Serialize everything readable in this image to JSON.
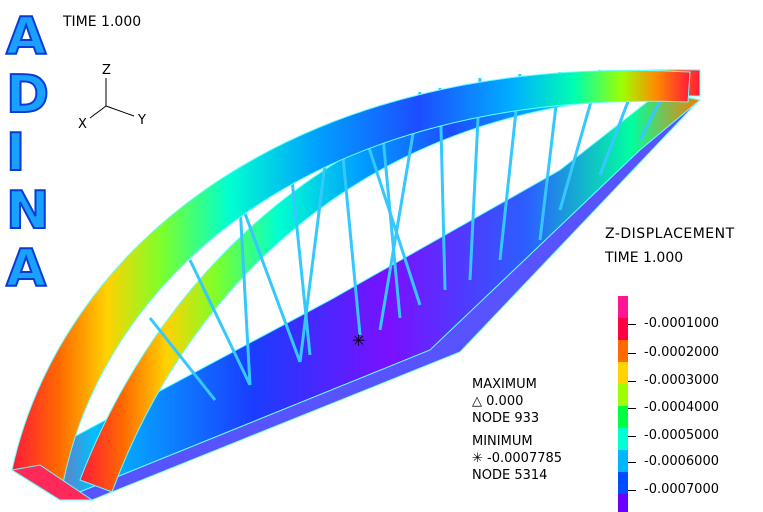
{
  "logo": {
    "letters": [
      "A",
      "D",
      "I",
      "N",
      "A"
    ]
  },
  "header": {
    "time_label": "TIME 1.000"
  },
  "triad": {
    "z": "Z",
    "x": "X",
    "y": "Y"
  },
  "legend": {
    "title": "Z-DISPLACEMENT",
    "time_label": "TIME 1.000",
    "ticks": [
      "-0.0001000",
      "-0.0002000",
      "-0.0003000",
      "-0.0004000",
      "-0.0005000",
      "-0.0006000",
      "-0.0007000"
    ],
    "colors": [
      "#ff1493",
      "#ff0040",
      "#ff6a00",
      "#ffd200",
      "#9dff00",
      "#00ff40",
      "#00ffd5",
      "#00b7ff",
      "#004dff",
      "#6a00ff"
    ]
  },
  "stats": {
    "max_title": "MAXIMUM",
    "max_symbol": "△",
    "max_value": "0.000",
    "max_node": "NODE 933",
    "min_title": "MINIMUM",
    "min_symbol": "✳",
    "min_value": "-0.0007785",
    "min_node": "NODE 5314"
  }
}
